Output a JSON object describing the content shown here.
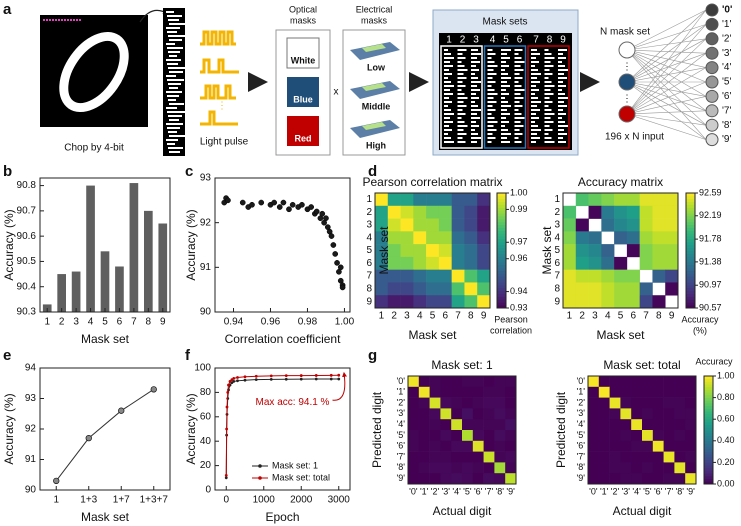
{
  "panel_labels": [
    "a",
    "b",
    "c",
    "d",
    "e",
    "f",
    "g"
  ],
  "diagram": {
    "chop_label": "Chop by 4-bit",
    "pulse_label": "Light pulse",
    "optical_title": [
      "Optical",
      "masks"
    ],
    "electrical_title": [
      "Electrical",
      "masks"
    ],
    "optical_masks": [
      "White",
      "Blue",
      "Red"
    ],
    "times": "x",
    "electrical_masks": [
      "Low",
      "Middle",
      "High"
    ],
    "mask_sets_title": "Mask sets",
    "mask_set_numbers": [
      "1",
      "2",
      "3",
      "4",
      "5",
      "6",
      "7",
      "8",
      "9"
    ],
    "network_title": "N mask set",
    "input_label": "196 x N input",
    "outputs": [
      "'0'",
      "'1'",
      "'2'",
      "'3'",
      "'4'",
      "'5'",
      "'6'",
      "'7'",
      "'8'",
      "'9'"
    ]
  },
  "chart_data": [
    {
      "type": "bar",
      "xlabel": "Mask set",
      "ylabel": "Accuracy (%)",
      "color": "#5f5f5f",
      "categories": [
        "1",
        "2",
        "3",
        "4",
        "5",
        "6",
        "7",
        "8",
        "9"
      ],
      "values": [
        90.33,
        90.45,
        90.46,
        90.8,
        90.54,
        90.48,
        90.81,
        90.7,
        90.65
      ],
      "ylim": [
        90.3,
        90.83
      ],
      "yticks": [
        90.3,
        90.4,
        90.5,
        90.6,
        90.7,
        90.8
      ]
    },
    {
      "type": "scatter",
      "xlabel": "Correlation coefficient",
      "ylabel": "Accuracy (%)",
      "color": "#1a1a1a",
      "x": [
        0.935,
        0.936,
        0.937,
        0.945,
        0.948,
        0.95,
        0.955,
        0.96,
        0.962,
        0.965,
        0.967,
        0.97,
        0.972,
        0.975,
        0.977,
        0.98,
        0.982,
        0.984,
        0.985,
        0.987,
        0.988,
        0.989,
        0.99,
        0.991,
        0.992,
        0.993,
        0.994,
        0.995,
        0.996,
        0.997,
        0.998,
        0.999,
        0.998,
        0.999
      ],
      "values": [
        92.45,
        92.55,
        92.5,
        92.45,
        92.35,
        92.4,
        92.45,
        92.4,
        92.45,
        92.35,
        92.45,
        92.3,
        92.4,
        92.35,
        92.4,
        92.3,
        92.35,
        92.2,
        92.25,
        92.1,
        92.2,
        92.0,
        92.1,
        91.9,
        91.8,
        91.7,
        91.5,
        91.3,
        91.1,
        90.9,
        90.7,
        90.6,
        91.0,
        90.55
      ],
      "xlim": [
        0.93,
        1.003
      ],
      "xticks": [
        0.94,
        0.96,
        0.98,
        {
          "value": 1,
          "label": "1.00"
        }
      ],
      "ylim": [
        90,
        93
      ],
      "yticks": [
        90,
        91,
        92,
        93
      ]
    },
    {
      "type": "heatmap",
      "title": "Pearson correlation matrix",
      "xlabel": "Mask set",
      "ylabel": "Mask set",
      "colormap": "viridis",
      "categories": [
        "1",
        "2",
        "3",
        "4",
        "5",
        "6",
        "7",
        "8",
        "9"
      ],
      "values": [
        [
          1,
          0.97,
          0.97,
          0.96,
          0.96,
          0.96,
          0.95,
          0.95,
          0.94
        ],
        [
          0.97,
          1,
          0.995,
          0.99,
          0.985,
          0.985,
          0.95,
          0.945,
          0.935
        ],
        [
          0.97,
          0.995,
          1,
          0.99,
          0.99,
          0.985,
          0.95,
          0.945,
          0.935
        ],
        [
          0.96,
          0.99,
          0.99,
          1,
          0.99,
          0.99,
          0.955,
          0.95,
          0.94
        ],
        [
          0.96,
          0.985,
          0.99,
          0.99,
          1,
          0.995,
          0.96,
          0.955,
          0.945
        ],
        [
          0.96,
          0.985,
          0.985,
          0.99,
          0.995,
          1,
          0.96,
          0.955,
          0.945
        ],
        [
          0.95,
          0.95,
          0.95,
          0.955,
          0.96,
          0.96,
          1,
          0.98,
          0.97
        ],
        [
          0.95,
          0.945,
          0.945,
          0.95,
          0.955,
          0.955,
          0.98,
          1,
          0.98
        ],
        [
          0.94,
          0.935,
          0.935,
          0.94,
          0.945,
          0.945,
          0.97,
          0.98,
          1
        ]
      ],
      "clim": [
        0.93,
        1.0
      ],
      "cticks": [
        {
          "value": 1.0,
          "label": "1.00"
        },
        0.99,
        0.97,
        0.96,
        0.94,
        0.93
      ],
      "colorbar_label": [
        "Pearson",
        "correlation"
      ]
    },
    {
      "type": "heatmap",
      "title": "Accuracy matrix",
      "xlabel": "Mask set",
      "ylabel": "Mask set",
      "colormap": "viridis",
      "categories": [
        "1",
        "2",
        "3",
        "4",
        "5",
        "6",
        "7",
        "8",
        "9"
      ],
      "values": [
        [
          null,
          92.0,
          92.1,
          92.2,
          92.3,
          92.3,
          92.5,
          92.5,
          92.5
        ],
        [
          92.0,
          null,
          90.6,
          91.4,
          91.6,
          91.7,
          92.4,
          92.5,
          92.5
        ],
        [
          92.1,
          90.6,
          null,
          91.3,
          91.5,
          91.6,
          92.4,
          92.5,
          92.5
        ],
        [
          92.2,
          91.4,
          91.3,
          null,
          91.2,
          91.3,
          92.3,
          92.4,
          92.4
        ],
        [
          92.3,
          91.6,
          91.5,
          91.2,
          null,
          90.6,
          92.2,
          92.3,
          92.3
        ],
        [
          92.3,
          91.7,
          91.6,
          91.3,
          90.6,
          null,
          92.2,
          92.3,
          92.3
        ],
        [
          92.5,
          92.4,
          92.4,
          92.3,
          92.2,
          92.2,
          null,
          91.2,
          91.0
        ],
        [
          92.5,
          92.5,
          92.5,
          92.4,
          92.3,
          92.3,
          91.2,
          null,
          90.6
        ],
        [
          92.5,
          92.5,
          92.5,
          92.4,
          92.3,
          92.3,
          91.0,
          90.6,
          null
        ]
      ],
      "clim": [
        90.57,
        92.59
      ],
      "cticks": [
        92.59,
        92.19,
        91.78,
        91.38,
        90.97,
        90.57
      ],
      "colorbar_label": [
        "Accuracy",
        "(%)"
      ]
    },
    {
      "type": "line",
      "xlabel": "Mask set",
      "ylabel": "Accuracy (%)",
      "color": "#333333",
      "categories": [
        "1",
        "1+3",
        "1+7",
        "1+3+7"
      ],
      "values": [
        90.3,
        91.7,
        92.6,
        93.3
      ],
      "ylim": [
        90,
        94
      ],
      "yticks": [
        90,
        91,
        92,
        93,
        94
      ]
    },
    {
      "type": "line",
      "xlabel": "Epoch",
      "ylabel": "Accuracy (%)",
      "legend": "lower right",
      "annotation": "Max acc: 94.1 %",
      "annotation_color": "#c00000",
      "x": [
        0,
        10,
        20,
        40,
        60,
        100,
        150,
        200,
        300,
        500,
        800,
        1200,
        1600,
        2000,
        2400,
        2800,
        3000
      ],
      "series": [
        {
          "name": "Mask set: 1",
          "color": "#222222",
          "values": [
            10,
            45,
            62,
            75,
            82,
            86,
            88,
            89,
            89.5,
            90,
            90.5,
            90.7,
            90.8,
            90.9,
            91,
            91,
            91
          ]
        },
        {
          "name": "Mask set: total",
          "color": "#c00000",
          "values": [
            12,
            50,
            68,
            80,
            86,
            89,
            90.5,
            91.5,
            92.2,
            92.8,
            93.2,
            93.5,
            93.7,
            93.8,
            93.9,
            94,
            94.1
          ]
        }
      ],
      "xlim": [
        -300,
        3300
      ],
      "xticks": [
        0,
        1000,
        2000,
        3000
      ],
      "ylim": [
        0,
        100
      ],
      "yticks": [
        0,
        20,
        40,
        60,
        80,
        100
      ]
    },
    {
      "type": "heatmap",
      "title": "Mask set: 1",
      "xlabel": "Actual digit",
      "ylabel": "Predicted digit",
      "colormap": "viridis",
      "categories": [
        "'0'",
        "'1'",
        "'2'",
        "'3'",
        "'4'",
        "'5'",
        "'6'",
        "'7'",
        "'8'",
        "'9'"
      ],
      "values": [
        [
          0.98,
          0,
          0.01,
          0,
          0,
          0.01,
          0.01,
          0,
          0.01,
          0.01
        ],
        [
          0,
          0.98,
          0.01,
          0,
          0,
          0,
          0,
          0.01,
          0.01,
          0
        ],
        [
          0,
          0.01,
          0.94,
          0.02,
          0.01,
          0,
          0.01,
          0.02,
          0.02,
          0
        ],
        [
          0,
          0,
          0.02,
          0.93,
          0,
          0.04,
          0,
          0.01,
          0.03,
          0.01
        ],
        [
          0,
          0,
          0.01,
          0,
          0.93,
          0.01,
          0.01,
          0.01,
          0.01,
          0.04
        ],
        [
          0.01,
          0,
          0,
          0.02,
          0,
          0.88,
          0.02,
          0,
          0.03,
          0.01
        ],
        [
          0.01,
          0,
          0.01,
          0,
          0.02,
          0.02,
          0.95,
          0,
          0.01,
          0
        ],
        [
          0,
          0,
          0.01,
          0.01,
          0,
          0,
          0,
          0.92,
          0.01,
          0.02
        ],
        [
          0,
          0.01,
          0.02,
          0.02,
          0.01,
          0.02,
          0.01,
          0,
          0.86,
          0.01
        ],
        [
          0,
          0,
          0,
          0.02,
          0.03,
          0.02,
          0,
          0.03,
          0.02,
          0.9
        ]
      ],
      "clim": [
        0,
        1
      ]
    },
    {
      "type": "heatmap",
      "title": "Mask set: total",
      "xlabel": "Actual digit",
      "ylabel": "Predicted digit",
      "colormap": "viridis",
      "categories": [
        "'0'",
        "'1'",
        "'2'",
        "'3'",
        "'4'",
        "'5'",
        "'6'",
        "'7'",
        "'8'",
        "'9'"
      ],
      "values": [
        [
          0.99,
          0,
          0,
          0,
          0,
          0,
          0,
          0,
          0,
          0
        ],
        [
          0,
          0.99,
          0,
          0,
          0,
          0,
          0,
          0,
          0,
          0
        ],
        [
          0,
          0,
          0.97,
          0.01,
          0,
          0,
          0,
          0.01,
          0.01,
          0
        ],
        [
          0,
          0,
          0.01,
          0.96,
          0,
          0.01,
          0,
          0,
          0.01,
          0.01
        ],
        [
          0,
          0,
          0,
          0,
          0.97,
          0,
          0,
          0,
          0,
          0.01
        ],
        [
          0,
          0,
          0,
          0.01,
          0,
          0.96,
          0.01,
          0,
          0.01,
          0
        ],
        [
          0,
          0,
          0,
          0,
          0.01,
          0.01,
          0.98,
          0,
          0,
          0
        ],
        [
          0,
          0,
          0.01,
          0,
          0,
          0,
          0,
          0.97,
          0,
          0.01
        ],
        [
          0,
          0,
          0.01,
          0.01,
          0,
          0.01,
          0,
          0,
          0.96,
          0
        ],
        [
          0,
          0,
          0,
          0.01,
          0.01,
          0,
          0,
          0.01,
          0.01,
          0.97
        ]
      ],
      "clim": [
        0,
        1
      ],
      "cticks": [
        {
          "value": 0,
          "label": "0.00"
        },
        {
          "value": 0.2,
          "label": "0.20"
        },
        {
          "value": 0.4,
          "label": "0.40"
        },
        {
          "value": 0.6,
          "label": "0.60"
        },
        {
          "value": 0.8,
          "label": "0.80"
        },
        {
          "value": 1,
          "label": "1.00"
        }
      ],
      "colorbar_label": "Accuracy"
    }
  ]
}
